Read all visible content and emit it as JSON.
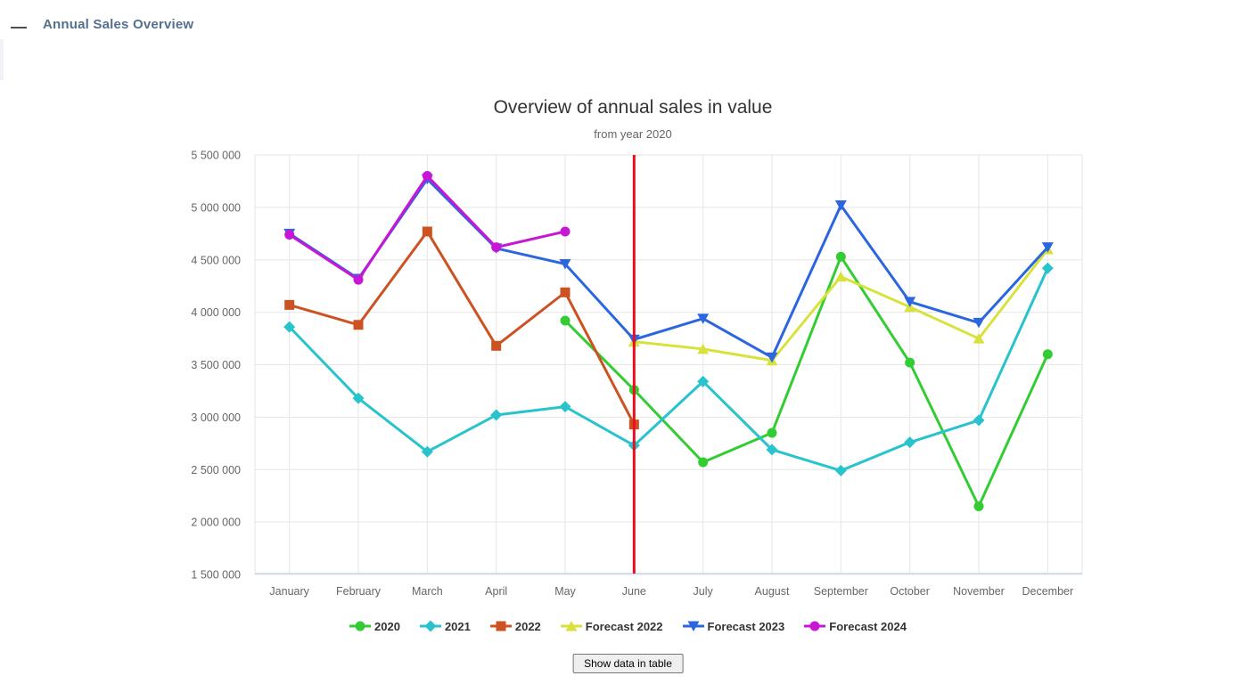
{
  "header": {
    "title": "Annual Sales Overview"
  },
  "chart_data": {
    "type": "line",
    "title": "Overview of annual sales in value",
    "subtitle": "from year 2020",
    "categories": [
      "January",
      "February",
      "March",
      "April",
      "May",
      "June",
      "July",
      "August",
      "September",
      "October",
      "November",
      "December"
    ],
    "ylim": [
      1500000,
      5500000
    ],
    "ytick_step": 500000,
    "grid": true,
    "legend_position": "bottom",
    "annotation": {
      "type": "vertical-line",
      "month": "June",
      "color": "#ee0d1e"
    },
    "series": [
      {
        "name": "2020",
        "color": "#33cc33",
        "marker": "circle",
        "values": [
          null,
          null,
          null,
          null,
          3920000,
          3260000,
          2570000,
          2850000,
          4530000,
          3520000,
          2150000,
          3600000
        ]
      },
      {
        "name": "2021",
        "color": "#28c3cd",
        "marker": "diamond",
        "values": [
          3860000,
          3180000,
          2670000,
          3020000,
          3100000,
          2730000,
          3340000,
          2690000,
          2490000,
          2760000,
          2970000,
          4420000
        ]
      },
      {
        "name": "2022",
        "color": "#cc5221",
        "marker": "square",
        "values": [
          4070000,
          3880000,
          4770000,
          3680000,
          4190000,
          2930000,
          null,
          null,
          null,
          null,
          null,
          null
        ]
      },
      {
        "name": "Forecast 2022",
        "color": "#d8e23d",
        "marker": "triangle-up",
        "values": [
          null,
          null,
          null,
          null,
          null,
          3720000,
          3650000,
          3540000,
          4340000,
          4050000,
          3750000,
          4600000
        ]
      },
      {
        "name": "Forecast 2023",
        "color": "#2b66e0",
        "marker": "triangle-down",
        "values": [
          4750000,
          4320000,
          5270000,
          4610000,
          4460000,
          3740000,
          3940000,
          3570000,
          5020000,
          4100000,
          3900000,
          4620000
        ]
      },
      {
        "name": "Forecast 2024",
        "color": "#c816d6",
        "marker": "circle",
        "values": [
          4740000,
          4310000,
          5300000,
          4620000,
          4770000,
          null,
          null,
          null,
          null,
          null,
          null,
          null
        ]
      }
    ]
  },
  "table_button": {
    "label": "Show data in table"
  },
  "colors": {
    "grid": "#e6e6e6",
    "axis_line": "#ccd6eb",
    "label": "#666666",
    "title": "#333333",
    "subtitle": "#666666"
  }
}
